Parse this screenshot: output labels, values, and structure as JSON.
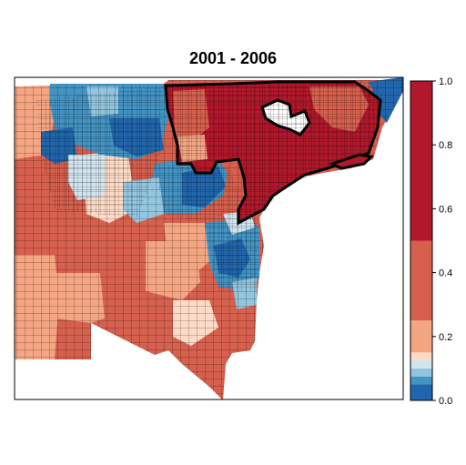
{
  "title": "2001 - 2006",
  "legend": {
    "ticks": [
      "0.0",
      "0.2",
      "0.4",
      "0.6",
      "0.8",
      "1.0"
    ],
    "tick_values": [
      0.0,
      0.2,
      0.4,
      0.6,
      0.8,
      1.0
    ],
    "range": [
      0.0,
      1.0
    ],
    "bins": [
      {
        "from": 0.0,
        "to": 0.05,
        "color": "#2166ac"
      },
      {
        "from": 0.05,
        "to": 0.075,
        "color": "#4393c3"
      },
      {
        "from": 0.075,
        "to": 0.1,
        "color": "#92c5de"
      },
      {
        "from": 0.1,
        "to": 0.125,
        "color": "#d1e5f0"
      },
      {
        "from": 0.125,
        "to": 0.15,
        "color": "#fddbc7"
      },
      {
        "from": 0.15,
        "to": 0.25,
        "color": "#f4a582"
      },
      {
        "from": 0.25,
        "to": 0.5,
        "color": "#d6604d"
      },
      {
        "from": 0.5,
        "to": 1.0,
        "color": "#b2182b"
      }
    ]
  },
  "colors": {
    "dark_red": "#b2182b",
    "red": "#d6604d",
    "salmon": "#f4a582",
    "pale_pink": "#fddbc7",
    "pale_blue": "#d1e5f0",
    "light_blue": "#92c5de",
    "mid_blue": "#4393c3",
    "dark_blue": "#2166ac",
    "outline": "#000000"
  }
}
